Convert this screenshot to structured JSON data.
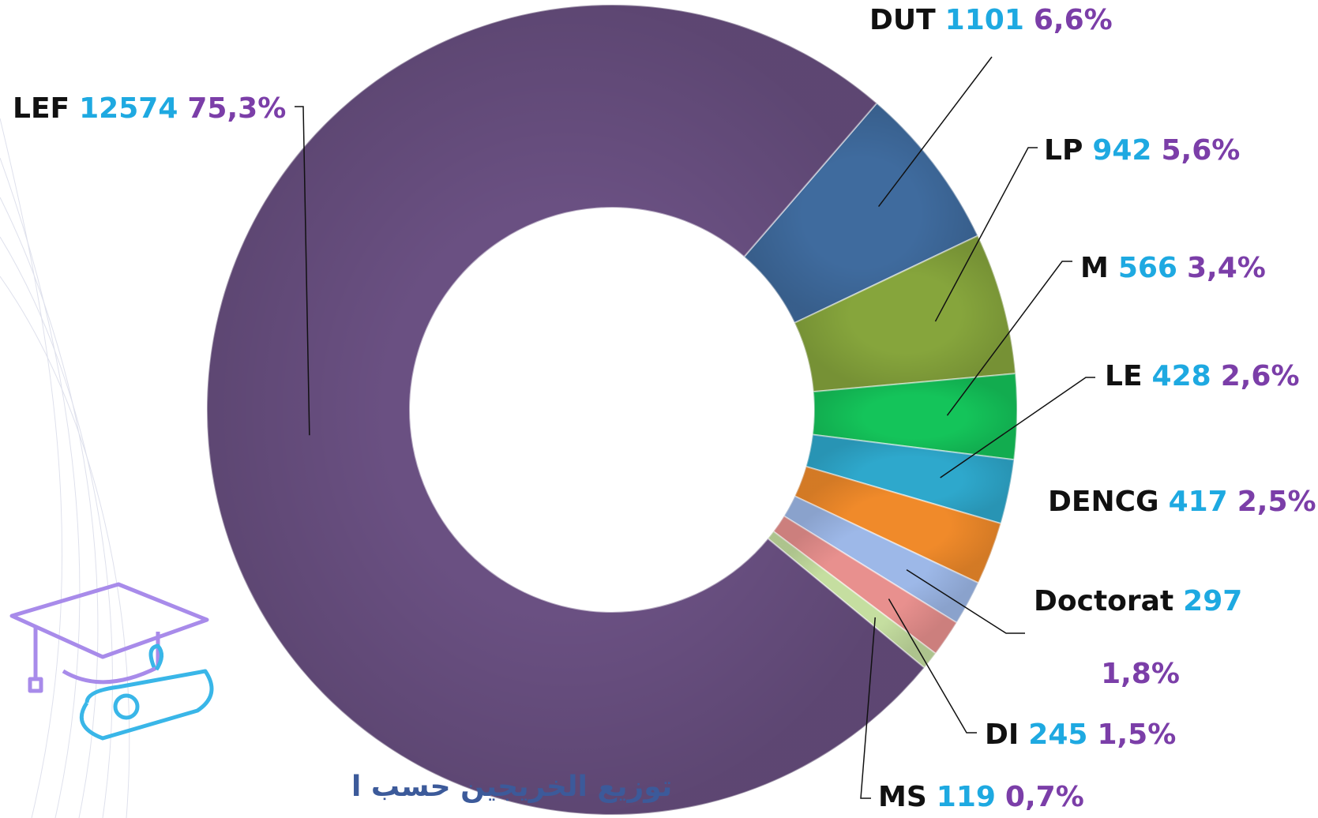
{
  "chart_data": {
    "type": "donut",
    "title": "توزيع الخريجين حسب ا",
    "categories": [
      "DUT",
      "LP",
      "M",
      "LE",
      "DENCG",
      "Doctorat",
      "DI",
      "MS",
      "LEF"
    ],
    "values": [
      1101,
      942,
      566,
      428,
      417,
      297,
      245,
      119,
      12574
    ],
    "percent_labels": [
      "6,6%",
      "5,6%",
      "3,4%",
      "2,6%",
      "2,5%",
      "1,8%",
      "1,5%",
      "0,7%",
      "75,3%"
    ],
    "colors": [
      "#3f6b9e",
      "#86a53c",
      "#14c45a",
      "#2ea8cc",
      "#f08a2a",
      "#9db8e8",
      "#e8908e",
      "#c5dea0",
      "#6a5082"
    ]
  }
}
